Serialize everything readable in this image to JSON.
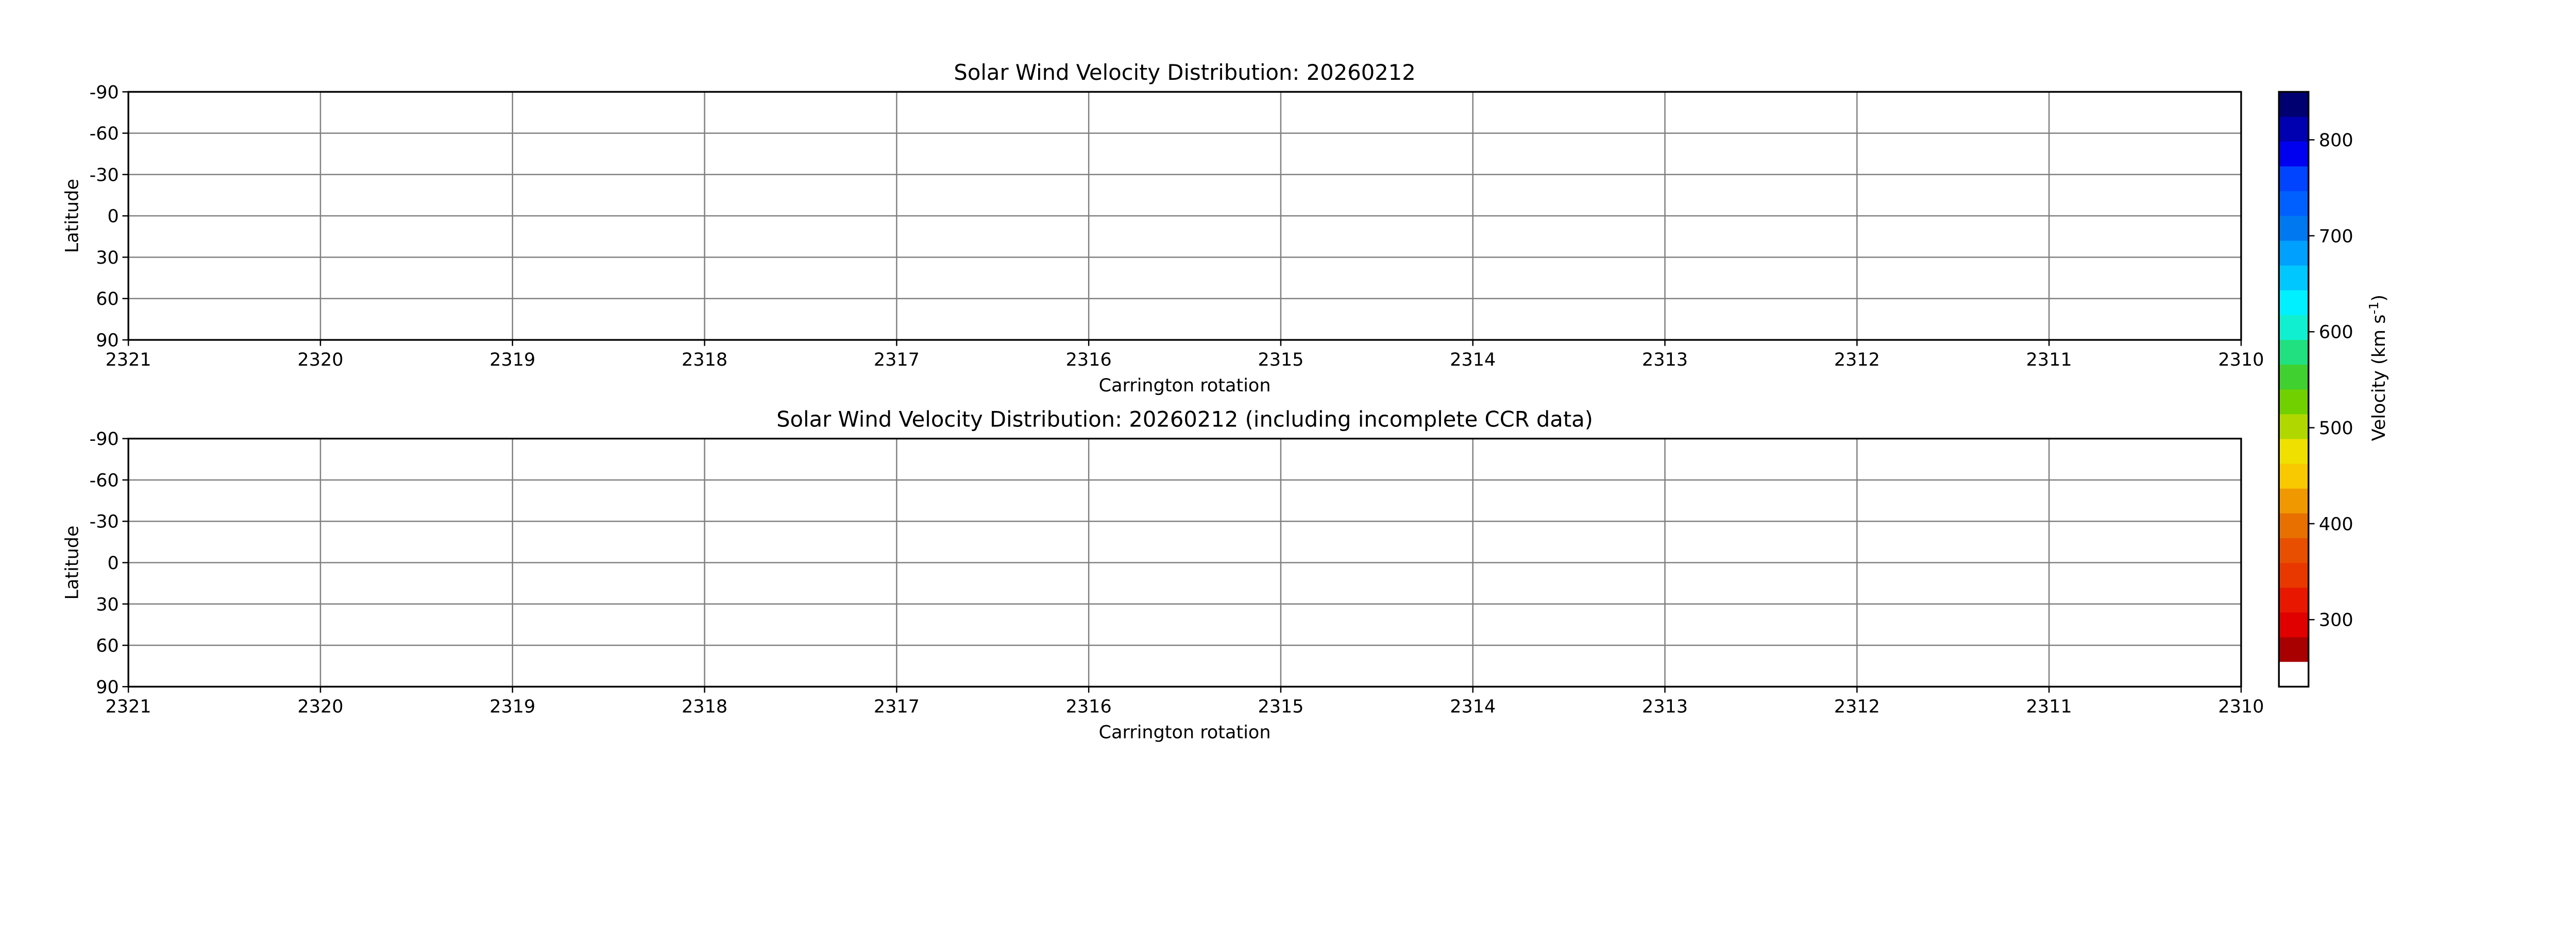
{
  "chart_data": [
    {
      "type": "heatmap",
      "title": "Solar Wind Velocity Distribution: 20260212",
      "xlabel": "Carrington rotation",
      "ylabel": "Latitude",
      "xlim": [
        2321,
        2310
      ],
      "ylim": [
        -90,
        90
      ],
      "x_ticks": [
        "2321",
        "2320",
        "2319",
        "2318",
        "2317",
        "2316",
        "2315",
        "2314",
        "2313",
        "2312",
        "2311",
        "2310"
      ],
      "y_ticks": [
        "-90",
        "-60",
        "-30",
        "0",
        "30",
        "60",
        "90"
      ],
      "grid": true,
      "values": []
    },
    {
      "type": "heatmap",
      "title": "Solar Wind Velocity Distribution: 20260212 (including incomplete CCR data)",
      "xlabel": "Carrington rotation",
      "ylabel": "Latitude",
      "xlim": [
        2321,
        2310
      ],
      "ylim": [
        -90,
        90
      ],
      "x_ticks": [
        "2321",
        "2320",
        "2319",
        "2318",
        "2317",
        "2316",
        "2315",
        "2314",
        "2313",
        "2312",
        "2311",
        "2310"
      ],
      "y_ticks": [
        "-90",
        "-60",
        "-30",
        "0",
        "30",
        "60",
        "90"
      ],
      "grid": true,
      "values": []
    }
  ],
  "colorbar": {
    "label": "Velocity (km s",
    "label_sup": "-1",
    "label_end": ")",
    "range": [
      256,
      850
    ],
    "ticks": [
      "300",
      "400",
      "500",
      "600",
      "700",
      "800"
    ],
    "under_color": "#ffffff",
    "colors": [
      "#a80000",
      "#e00000",
      "#e81800",
      "#e83800",
      "#e85000",
      "#e87000",
      "#f09800",
      "#f8c800",
      "#f0e000",
      "#b0d800",
      "#70d000",
      "#40d030",
      "#20e080",
      "#10f0d0",
      "#00f0ff",
      "#00c8ff",
      "#00a0ff",
      "#0078f0",
      "#0060ff",
      "#0044ff",
      "#0000f0",
      "#0000b0",
      "#000070"
    ]
  },
  "style": {
    "grid_color": "#808080",
    "axis_color": "#000000"
  }
}
